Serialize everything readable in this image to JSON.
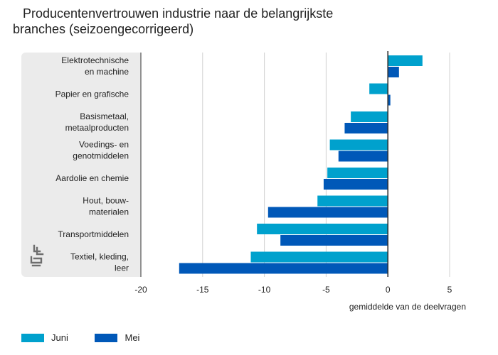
{
  "title_line1": "Producentenvertrouwen industrie naar de belangrijkste",
  "title_line2": "branches (seizoengecorrigeerd)",
  "logo_icon": "cbs-logo-icon",
  "chart_data": {
    "type": "bar",
    "orientation": "horizontal",
    "title": "Producentenvertrouwen industrie naar de belangrijkste branches (seizoengecorrigeerd)",
    "xlabel": "gemiddelde van de deelvragen",
    "ylabel": "",
    "xlim": [
      -20,
      5
    ],
    "xticks": [
      -20,
      -15,
      -10,
      -5,
      0,
      5
    ],
    "grid": true,
    "legend_position": "bottom-left",
    "categories": [
      [
        "Elektrotechnische",
        "en machine"
      ],
      [
        "Papier en grafische"
      ],
      [
        "Basismetaal,",
        "metaalproducten"
      ],
      [
        "Voedings- en",
        "genotmiddelen"
      ],
      [
        "Aardolie en chemie"
      ],
      [
        "Hout, bouw-",
        "materialen"
      ],
      [
        "Transportmiddelen"
      ],
      [
        "Textiel, kleding,",
        "leer"
      ]
    ],
    "series": [
      {
        "name": "Juni",
        "color": "#00a1cd",
        "values": [
          2.8,
          -1.5,
          -3.0,
          -4.7,
          -4.9,
          -5.7,
          -10.6,
          -11.1
        ]
      },
      {
        "name": "Mei",
        "color": "#0058b8",
        "values": [
          0.9,
          0.2,
          -3.5,
          -4.0,
          -5.2,
          -9.7,
          -8.7,
          -16.9
        ]
      }
    ]
  }
}
